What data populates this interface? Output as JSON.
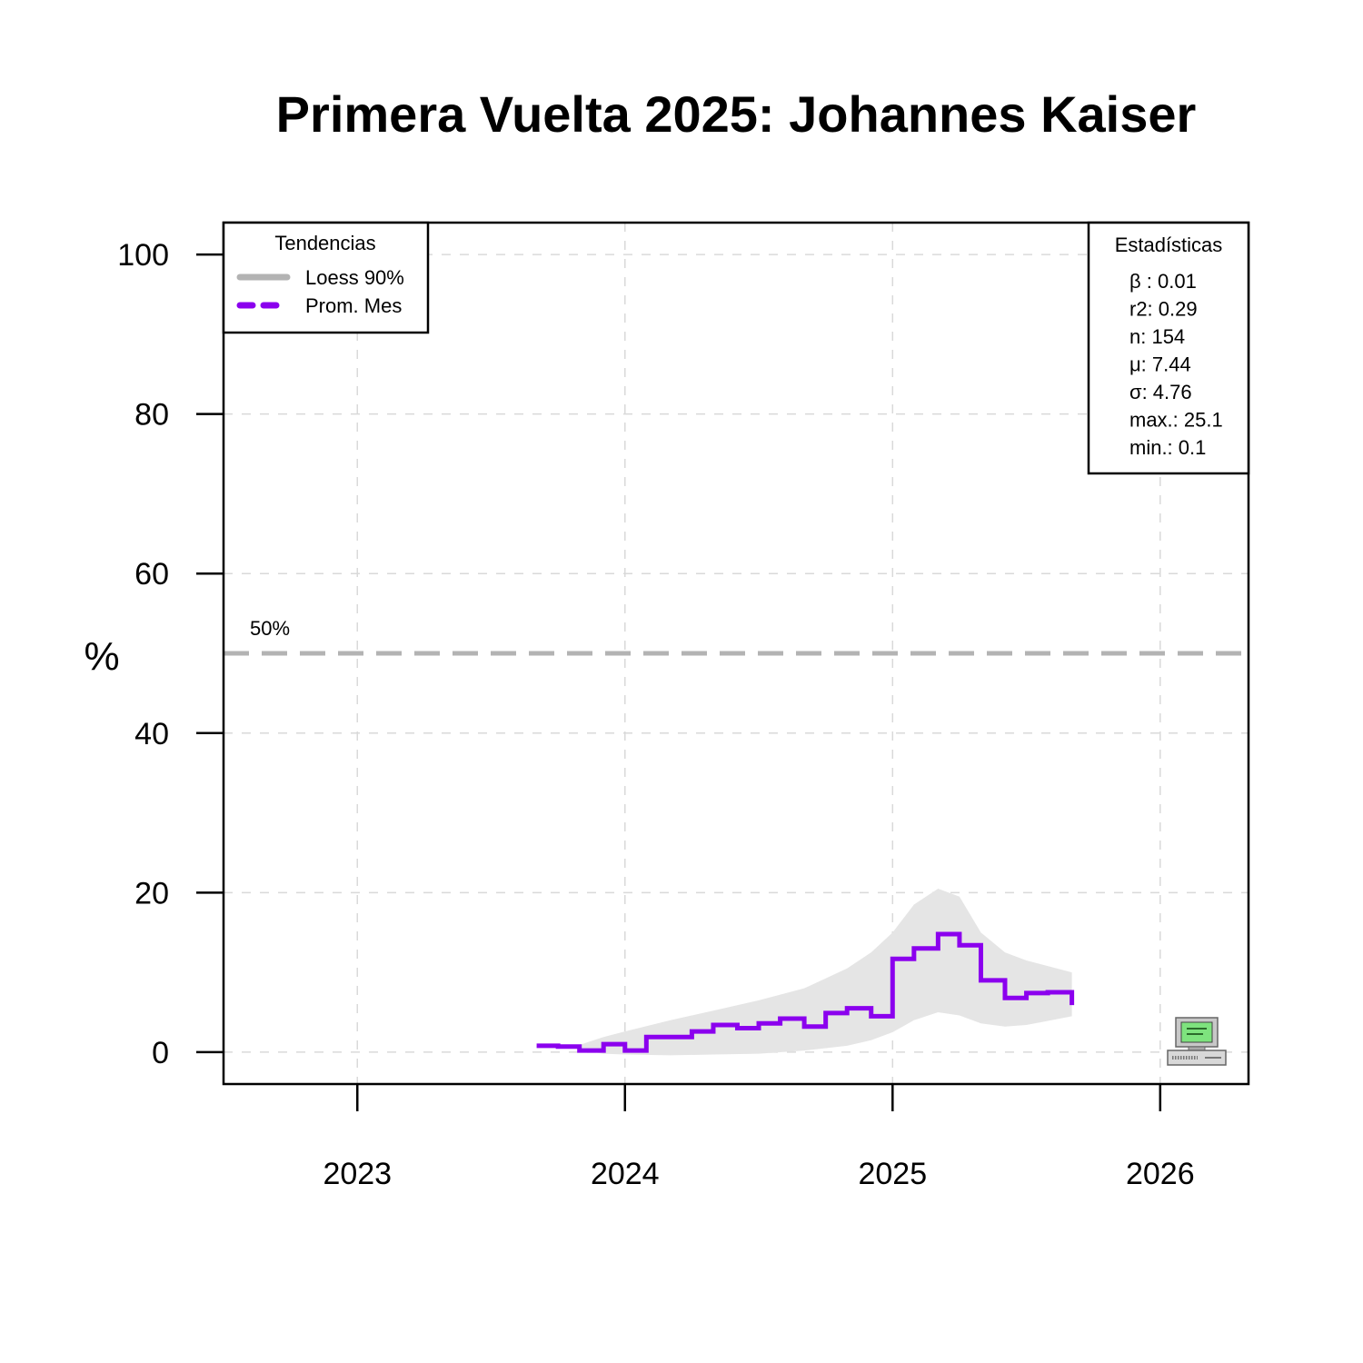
{
  "chart_data": {
    "type": "line",
    "title": "Primera Vuelta 2025: Johannes Kaiser",
    "ylabel": "%",
    "xlabel": "",
    "xlim": [
      2022.5,
      2026.33
    ],
    "ylim": [
      -4,
      104
    ],
    "x_ticks": [
      2023,
      2024,
      2025,
      2026
    ],
    "x_tick_labels": [
      "2023",
      "2024",
      "2025",
      "2026"
    ],
    "y_ticks": [
      0,
      20,
      40,
      60,
      80,
      100
    ],
    "y_tick_labels": [
      "0",
      "20",
      "40",
      "60",
      "80",
      "100"
    ],
    "grid": true,
    "reference_line": {
      "value": 50,
      "label": "50%",
      "color": "#b3b3b3"
    },
    "series": [
      {
        "name": "Prom. Mes",
        "kind": "step",
        "color": "#8b00ee",
        "points": [
          {
            "x": 2023.67,
            "y": 0.8
          },
          {
            "x": 2023.75,
            "y": 0.7
          },
          {
            "x": 2023.83,
            "y": 0.2
          },
          {
            "x": 2023.92,
            "y": 1.0
          },
          {
            "x": 2024.0,
            "y": 0.2
          },
          {
            "x": 2024.08,
            "y": 1.9
          },
          {
            "x": 2024.25,
            "y": 2.6
          },
          {
            "x": 2024.33,
            "y": 3.4
          },
          {
            "x": 2024.42,
            "y": 3.0
          },
          {
            "x": 2024.5,
            "y": 3.6
          },
          {
            "x": 2024.58,
            "y": 4.2
          },
          {
            "x": 2024.67,
            "y": 3.2
          },
          {
            "x": 2024.75,
            "y": 4.9
          },
          {
            "x": 2024.83,
            "y": 5.5
          },
          {
            "x": 2024.92,
            "y": 4.5
          },
          {
            "x": 2025.0,
            "y": 11.7
          },
          {
            "x": 2025.08,
            "y": 13.0
          },
          {
            "x": 2025.17,
            "y": 14.8
          },
          {
            "x": 2025.25,
            "y": 13.4
          },
          {
            "x": 2025.33,
            "y": 9.0
          },
          {
            "x": 2025.42,
            "y": 6.8
          },
          {
            "x": 2025.5,
            "y": 7.4
          },
          {
            "x": 2025.58,
            "y": 7.5
          },
          {
            "x": 2025.67,
            "y": 5.9
          }
        ]
      },
      {
        "name": "Loess 90%",
        "kind": "band",
        "color": "#e5e5e5",
        "points": [
          {
            "x": 2023.83,
            "y_low": 0.2,
            "y_high": 0.9
          },
          {
            "x": 2023.92,
            "y_low": -0.2,
            "y_high": 1.9
          },
          {
            "x": 2024.0,
            "y_low": -0.3,
            "y_high": 2.6
          },
          {
            "x": 2024.17,
            "y_low": -0.4,
            "y_high": 4.0
          },
          {
            "x": 2024.33,
            "y_low": -0.3,
            "y_high": 5.2
          },
          {
            "x": 2024.5,
            "y_low": -0.2,
            "y_high": 6.5
          },
          {
            "x": 2024.67,
            "y_low": 0.2,
            "y_high": 8.0
          },
          {
            "x": 2024.83,
            "y_low": 0.8,
            "y_high": 10.5
          },
          {
            "x": 2024.92,
            "y_low": 1.5,
            "y_high": 12.5
          },
          {
            "x": 2025.0,
            "y_low": 2.5,
            "y_high": 15.0
          },
          {
            "x": 2025.08,
            "y_low": 4.0,
            "y_high": 18.5
          },
          {
            "x": 2025.17,
            "y_low": 5.0,
            "y_high": 20.5
          },
          {
            "x": 2025.25,
            "y_low": 4.6,
            "y_high": 19.5
          },
          {
            "x": 2025.33,
            "y_low": 3.6,
            "y_high": 15.0
          },
          {
            "x": 2025.42,
            "y_low": 3.2,
            "y_high": 12.5
          },
          {
            "x": 2025.5,
            "y_low": 3.4,
            "y_high": 11.5
          },
          {
            "x": 2025.67,
            "y_low": 4.5,
            "y_high": 10.0
          }
        ]
      }
    ],
    "legend": {
      "title": "Tendencias",
      "position": "top-left",
      "items": [
        {
          "label": "Loess 90%",
          "color": "#b3b3b3",
          "style": "solid"
        },
        {
          "label": "Prom. Mes",
          "color": "#8b00ee",
          "style": "dashed"
        }
      ]
    },
    "stats_box": {
      "title": "Estadísticas",
      "position": "top-right",
      "lines": [
        "β : 0.01",
        "r2: 0.29",
        "n: 154",
        "μ: 7.44",
        "σ: 4.76",
        "max.: 25.1",
        "min.: 0.1"
      ]
    }
  },
  "icons": {
    "watermark": "computer-icon"
  }
}
